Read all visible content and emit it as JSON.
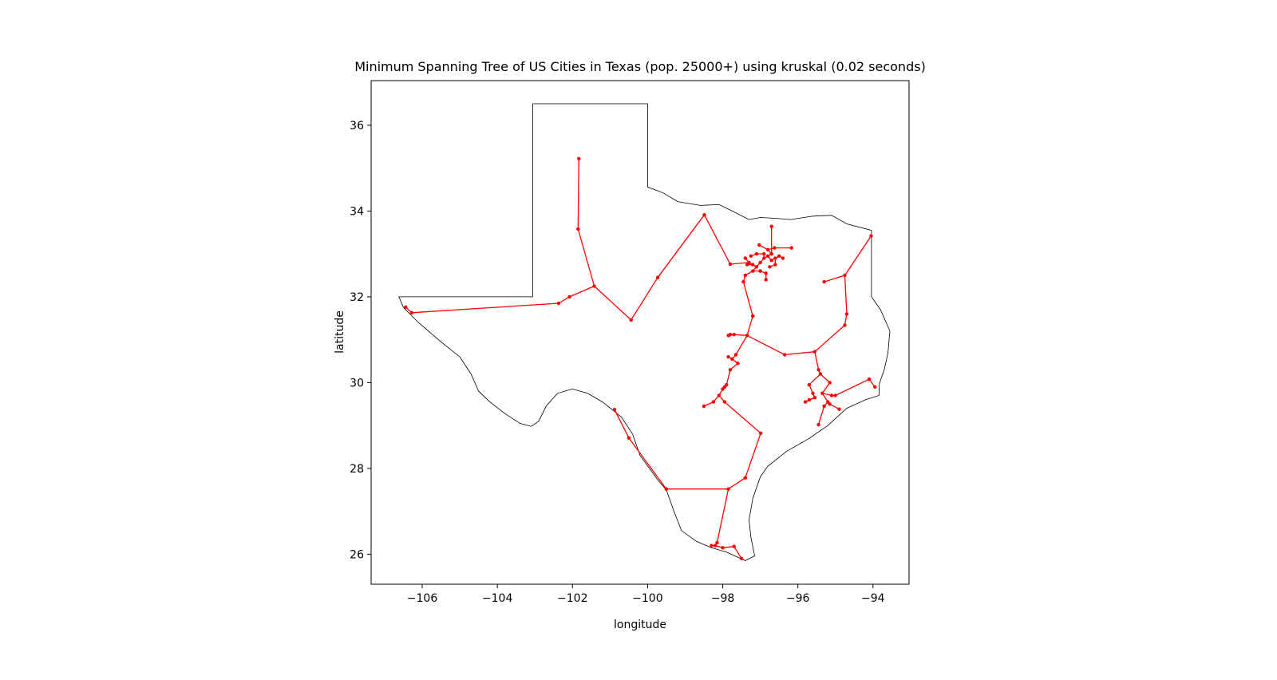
{
  "chart_data": {
    "type": "scatter",
    "title": "Minimum Spanning Tree of US Cities in Texas (pop. 25000+) using kruskal (0.02 seconds)",
    "xlabel": "longitude",
    "ylabel": "latitude",
    "xlim": [
      -107.36,
      -93.04
    ],
    "ylim": [
      25.3,
      37.04
    ],
    "xticks": [
      -106,
      -104,
      -102,
      -100,
      -98,
      -96,
      -94
    ],
    "xtick_labels": [
      "−106",
      "−104",
      "−102",
      "−100",
      "−98",
      "−96",
      "−94"
    ],
    "yticks": [
      26,
      28,
      30,
      32,
      34,
      36
    ],
    "ytick_labels": [
      "26",
      "28",
      "30",
      "32",
      "34",
      "36"
    ],
    "grid": false,
    "colors": {
      "tree": "#ff0000",
      "border": "#000000"
    },
    "border": [
      [
        -103.06,
        36.5
      ],
      [
        -100.0,
        36.5
      ],
      [
        -100.0,
        34.56
      ],
      [
        -99.58,
        34.42
      ],
      [
        -99.2,
        34.22
      ],
      [
        -98.6,
        34.13
      ],
      [
        -98.1,
        34.15
      ],
      [
        -97.7,
        33.98
      ],
      [
        -97.3,
        33.8
      ],
      [
        -97.0,
        33.85
      ],
      [
        -96.6,
        33.83
      ],
      [
        -96.2,
        33.8
      ],
      [
        -95.6,
        33.88
      ],
      [
        -95.1,
        33.9
      ],
      [
        -94.7,
        33.7
      ],
      [
        -94.04,
        33.55
      ],
      [
        -94.04,
        32.0
      ],
      [
        -93.8,
        31.7
      ],
      [
        -93.55,
        31.2
      ],
      [
        -93.6,
        30.7
      ],
      [
        -93.7,
        30.3
      ],
      [
        -93.83,
        29.98
      ],
      [
        -93.84,
        29.7
      ],
      [
        -94.2,
        29.6
      ],
      [
        -94.7,
        29.4
      ],
      [
        -95.2,
        29.0
      ],
      [
        -95.7,
        28.7
      ],
      [
        -96.3,
        28.4
      ],
      [
        -96.8,
        28.05
      ],
      [
        -97.0,
        27.8
      ],
      [
        -97.2,
        27.3
      ],
      [
        -97.3,
        26.8
      ],
      [
        -97.25,
        26.4
      ],
      [
        -97.15,
        25.96
      ],
      [
        -97.4,
        25.85
      ],
      [
        -97.9,
        26.05
      ],
      [
        -98.3,
        26.15
      ],
      [
        -98.7,
        26.3
      ],
      [
        -99.1,
        26.55
      ],
      [
        -99.3,
        27.0
      ],
      [
        -99.5,
        27.5
      ],
      [
        -99.7,
        27.7
      ],
      [
        -100.2,
        28.3
      ],
      [
        -100.4,
        28.8
      ],
      [
        -100.7,
        29.2
      ],
      [
        -101.2,
        29.55
      ],
      [
        -101.6,
        29.75
      ],
      [
        -102.0,
        29.85
      ],
      [
        -102.4,
        29.75
      ],
      [
        -102.7,
        29.45
      ],
      [
        -102.9,
        29.1
      ],
      [
        -103.1,
        28.98
      ],
      [
        -103.4,
        29.05
      ],
      [
        -103.8,
        29.28
      ],
      [
        -104.2,
        29.55
      ],
      [
        -104.5,
        29.8
      ],
      [
        -104.7,
        30.2
      ],
      [
        -105.0,
        30.6
      ],
      [
        -105.5,
        30.95
      ],
      [
        -106.1,
        31.4
      ],
      [
        -106.5,
        31.75
      ],
      [
        -106.62,
        32.0
      ],
      [
        -103.06,
        32.0
      ],
      [
        -103.06,
        36.5
      ]
    ],
    "cities": [
      [
        -101.83,
        35.22
      ],
      [
        -101.85,
        33.58
      ],
      [
        -101.42,
        32.25
      ],
      [
        -102.08,
        32.0
      ],
      [
        -102.37,
        31.85
      ],
      [
        -106.44,
        31.76
      ],
      [
        -106.28,
        31.63
      ],
      [
        -100.44,
        31.46
      ],
      [
        -99.73,
        32.45
      ],
      [
        -98.49,
        33.91
      ],
      [
        -97.8,
        32.76
      ],
      [
        -97.03,
        33.21
      ],
      [
        -96.7,
        33.64
      ],
      [
        -96.62,
        33.14
      ],
      [
        -96.17,
        33.14
      ],
      [
        -97.4,
        32.9
      ],
      [
        -97.3,
        32.8
      ],
      [
        -97.2,
        32.75
      ],
      [
        -97.1,
        32.7
      ],
      [
        -97.0,
        32.8
      ],
      [
        -96.9,
        32.9
      ],
      [
        -96.8,
        32.95
      ],
      [
        -96.7,
        32.85
      ],
      [
        -96.6,
        32.9
      ],
      [
        -96.5,
        32.95
      ],
      [
        -96.7,
        33.0
      ],
      [
        -96.8,
        33.1
      ],
      [
        -96.9,
        33.0
      ],
      [
        -97.1,
        33.0
      ],
      [
        -97.25,
        32.95
      ],
      [
        -97.35,
        32.75
      ],
      [
        -97.2,
        32.6
      ],
      [
        -97.0,
        32.6
      ],
      [
        -96.85,
        32.55
      ],
      [
        -96.85,
        32.4
      ],
      [
        -97.4,
        32.5
      ],
      [
        -97.45,
        32.35
      ],
      [
        -96.6,
        32.75
      ],
      [
        -96.4,
        32.9
      ],
      [
        -96.75,
        32.7
      ],
      [
        -97.2,
        31.55
      ],
      [
        -97.35,
        31.1
      ],
      [
        -97.7,
        31.12
      ],
      [
        -97.8,
        31.12
      ],
      [
        -97.85,
        31.1
      ],
      [
        -97.65,
        30.65
      ],
      [
        -97.75,
        30.55
      ],
      [
        -97.85,
        30.6
      ],
      [
        -97.6,
        30.45
      ],
      [
        -97.8,
        30.3
      ],
      [
        -97.9,
        29.95
      ],
      [
        -97.95,
        29.9
      ],
      [
        -98.0,
        29.85
      ],
      [
        -98.1,
        29.7
      ],
      [
        -98.25,
        29.55
      ],
      [
        -98.5,
        29.45
      ],
      [
        -97.95,
        29.55
      ],
      [
        -96.99,
        28.82
      ],
      [
        -97.4,
        27.78
      ],
      [
        -97.85,
        27.52
      ],
      [
        -99.5,
        27.52
      ],
      [
        -100.5,
        28.71
      ],
      [
        -100.88,
        29.37
      ],
      [
        -98.15,
        26.27
      ],
      [
        -98.2,
        26.2
      ],
      [
        -98.3,
        26.2
      ],
      [
        -98.0,
        26.15
      ],
      [
        -97.7,
        26.18
      ],
      [
        -97.5,
        25.9
      ],
      [
        -96.35,
        30.65
      ],
      [
        -95.55,
        30.72
      ],
      [
        -95.45,
        30.3
      ],
      [
        -95.4,
        30.2
      ],
      [
        -95.15,
        30.0
      ],
      [
        -95.7,
        29.95
      ],
      [
        -95.6,
        29.75
      ],
      [
        -95.55,
        29.65
      ],
      [
        -95.7,
        29.6
      ],
      [
        -95.8,
        29.55
      ],
      [
        -95.35,
        29.75
      ],
      [
        -95.1,
        29.7
      ],
      [
        -95.0,
        29.7
      ],
      [
        -95.2,
        29.55
      ],
      [
        -95.15,
        29.5
      ],
      [
        -94.9,
        29.38
      ],
      [
        -95.3,
        29.45
      ],
      [
        -95.45,
        29.02
      ],
      [
        -94.1,
        30.08
      ],
      [
        -93.95,
        29.9
      ],
      [
        -94.75,
        31.34
      ],
      [
        -94.7,
        31.6
      ],
      [
        -94.75,
        32.5
      ],
      [
        -95.3,
        32.35
      ],
      [
        -94.05,
        33.42
      ]
    ],
    "edges": [
      [
        0,
        1
      ],
      [
        1,
        2
      ],
      [
        2,
        3
      ],
      [
        3,
        4
      ],
      [
        4,
        6
      ],
      [
        6,
        5
      ],
      [
        2,
        7
      ],
      [
        7,
        8
      ],
      [
        8,
        9
      ],
      [
        9,
        10
      ],
      [
        10,
        16
      ],
      [
        16,
        15
      ],
      [
        16,
        17
      ],
      [
        17,
        18
      ],
      [
        18,
        19
      ],
      [
        19,
        20
      ],
      [
        20,
        21
      ],
      [
        21,
        22
      ],
      [
        22,
        23
      ],
      [
        23,
        24
      ],
      [
        21,
        25
      ],
      [
        25,
        26
      ],
      [
        25,
        12
      ],
      [
        26,
        11
      ],
      [
        20,
        27
      ],
      [
        27,
        28
      ],
      [
        28,
        29
      ],
      [
        17,
        30
      ],
      [
        18,
        31
      ],
      [
        31,
        32
      ],
      [
        32,
        33
      ],
      [
        33,
        34
      ],
      [
        31,
        35
      ],
      [
        35,
        36
      ],
      [
        23,
        37
      ],
      [
        37,
        39
      ],
      [
        24,
        38
      ],
      [
        26,
        13
      ],
      [
        13,
        14
      ],
      [
        36,
        40
      ],
      [
        40,
        41
      ],
      [
        41,
        42
      ],
      [
        42,
        43
      ],
      [
        43,
        44
      ],
      [
        41,
        45
      ],
      [
        45,
        46
      ],
      [
        46,
        47
      ],
      [
        46,
        48
      ],
      [
        48,
        49
      ],
      [
        49,
        50
      ],
      [
        50,
        51
      ],
      [
        51,
        52
      ],
      [
        52,
        53
      ],
      [
        53,
        54
      ],
      [
        54,
        55
      ],
      [
        53,
        56
      ],
      [
        56,
        57
      ],
      [
        57,
        58
      ],
      [
        58,
        59
      ],
      [
        59,
        60
      ],
      [
        60,
        61
      ],
      [
        61,
        62
      ],
      [
        59,
        63
      ],
      [
        63,
        64
      ],
      [
        64,
        65
      ],
      [
        64,
        66
      ],
      [
        66,
        67
      ],
      [
        67,
        68
      ],
      [
        41,
        69
      ],
      [
        69,
        70
      ],
      [
        70,
        71
      ],
      [
        71,
        72
      ],
      [
        72,
        73
      ],
      [
        72,
        74
      ],
      [
        74,
        75
      ],
      [
        75,
        76
      ],
      [
        76,
        77
      ],
      [
        76,
        78
      ],
      [
        73,
        79
      ],
      [
        79,
        80
      ],
      [
        80,
        81
      ],
      [
        79,
        82
      ],
      [
        82,
        83
      ],
      [
        83,
        84
      ],
      [
        82,
        85
      ],
      [
        85,
        86
      ],
      [
        81,
        87
      ],
      [
        87,
        88
      ],
      [
        70,
        89
      ],
      [
        89,
        90
      ],
      [
        90,
        91
      ],
      [
        91,
        92
      ],
      [
        91,
        93
      ]
    ]
  }
}
